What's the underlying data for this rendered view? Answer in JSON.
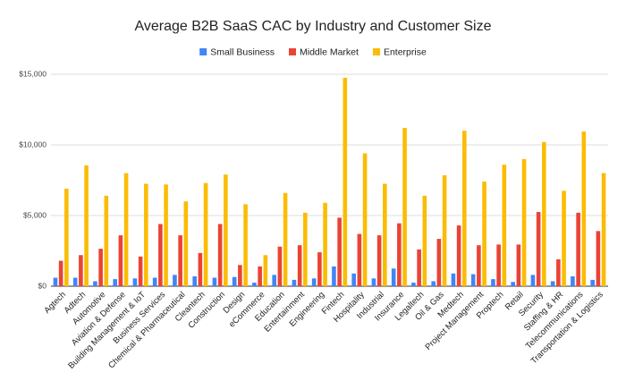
{
  "chart_data": {
    "type": "bar",
    "title": "Average B2B SaaS CAC by Industry and Customer Size",
    "categories": [
      "Agtech",
      "Adtech",
      "Automotive",
      "Aviation & Defense",
      "Building Management & IoT",
      "Business Services",
      "Chemical & Pharmaceutical",
      "Cleantech",
      "Construction",
      "Design",
      "eCommerce",
      "Education",
      "Entertainment",
      "Engineering",
      "Fintech",
      "Hospitality",
      "Industrial",
      "Insurance",
      "Legaltech",
      "Oil & Gas",
      "Medtech",
      "Project Management",
      "Proptech",
      "Retail",
      "Security",
      "Staffing & HR",
      "Telecommunications",
      "Transportation & Logistics"
    ],
    "series": [
      {
        "name": "Small Business",
        "color": "#4285f4",
        "values": [
          600,
          600,
          350,
          500,
          550,
          600,
          800,
          700,
          600,
          650,
          250,
          800,
          450,
          550,
          1400,
          900,
          550,
          1250,
          250,
          350,
          900,
          850,
          500,
          300,
          800,
          350,
          700,
          450
        ]
      },
      {
        "name": "Middle Market",
        "color": "#ea4335",
        "values": [
          1800,
          2200,
          2650,
          3600,
          2100,
          4400,
          3600,
          2350,
          4400,
          1500,
          1400,
          2800,
          2900,
          2400,
          4850,
          3700,
          3600,
          4450,
          2600,
          3350,
          4300,
          2900,
          2950,
          2950,
          5250,
          1900,
          5200,
          3900
        ]
      },
      {
        "name": "Enterprise",
        "color": "#fbbc04",
        "values": [
          6900,
          8550,
          6400,
          8000,
          7250,
          7200,
          6000,
          7300,
          7900,
          5800,
          2200,
          6600,
          5200,
          5900,
          14750,
          9400,
          7250,
          11200,
          6400,
          7850,
          11000,
          7400,
          8600,
          9000,
          10200,
          6750,
          10950,
          8000
        ]
      }
    ],
    "ylim": [
      0,
      15000
    ],
    "yticks": [
      {
        "value": 0,
        "label": "$0"
      },
      {
        "value": 5000,
        "label": "$5,000"
      },
      {
        "value": 10000,
        "label": "$10,000"
      },
      {
        "value": 15000,
        "label": "$15,000"
      }
    ],
    "grid": true,
    "legend": "top"
  }
}
